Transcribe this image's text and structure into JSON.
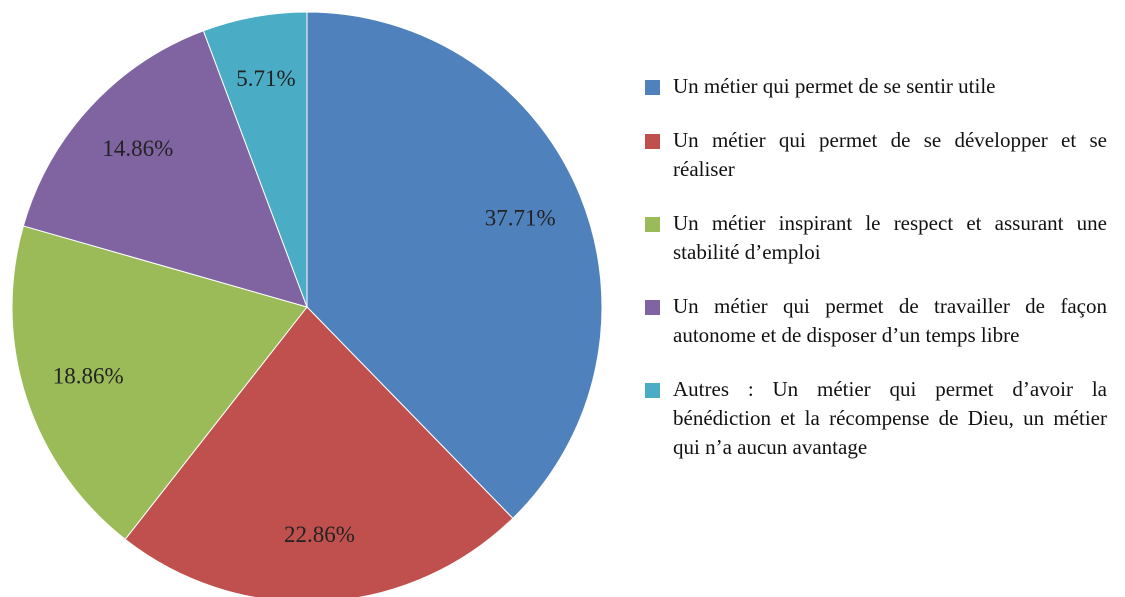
{
  "chart_data": {
    "type": "pie",
    "categories": [
      "Un métier qui permet de se sentir utile",
      "Un métier qui permet de se développer et se réaliser",
      "Un métier inspirant le respect et assurant une stabilité d’emploi",
      "Un métier qui permet de travailler de façon autonome et de disposer d’un temps libre",
      "Autres : Un métier qui permet d’avoir la bénédiction et la récompense de Dieu, un métier qui n’a aucun avantage"
    ],
    "values": [
      37.71,
      22.86,
      18.86,
      14.86,
      5.71
    ],
    "value_labels": [
      "37.71%",
      "22.86%",
      "18.86%",
      "14.86%",
      "5.71%"
    ],
    "colors": [
      "#4f81bd",
      "#c0504d",
      "#9bbb59",
      "#8064a2",
      "#4bacc6"
    ],
    "legend": "right"
  }
}
